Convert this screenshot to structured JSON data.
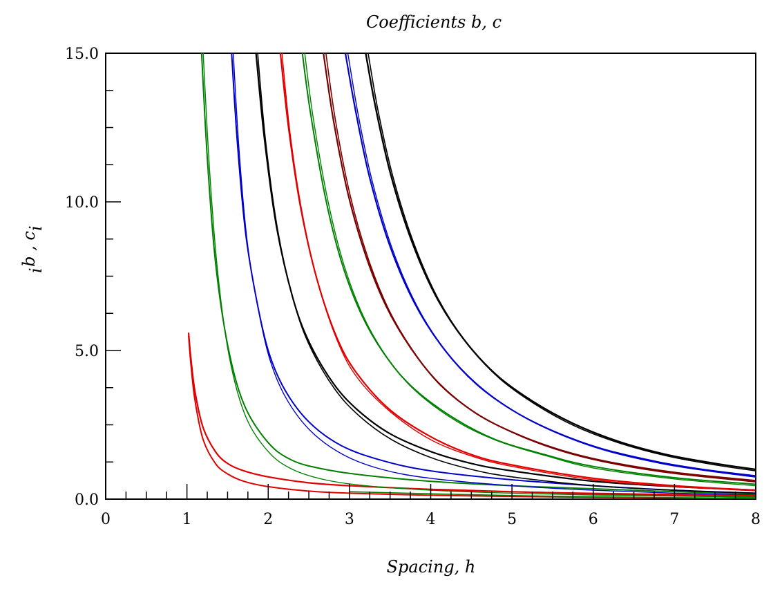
{
  "chart_data": {
    "type": "line",
    "title": "Coefficients b, c",
    "xlabel": "Spacing, h",
    "ylabel": "b , c",
    "ylabel_subscript": "i",
    "xlim": [
      0,
      8
    ],
    "ylim": [
      0,
      15
    ],
    "x_ticks": [
      "0",
      "1",
      "2",
      "3",
      "4",
      "5",
      "6",
      "7",
      "8"
    ],
    "y_ticks": [
      "0.0",
      "5.0",
      "10.0",
      "15.0"
    ],
    "grid": false,
    "legend": "none",
    "series": [
      {
        "color": "#e00000",
        "width": 2.2,
        "x": [
          1.02,
          1.05,
          1.1,
          1.2,
          1.35,
          1.5,
          1.7,
          2.0,
          2.5,
          3.0,
          4.0,
          5.0,
          6.0,
          7.0,
          8.0
        ],
        "y": [
          5.6,
          4.7,
          3.6,
          2.4,
          1.6,
          1.2,
          0.95,
          0.75,
          0.55,
          0.45,
          0.33,
          0.25,
          0.18,
          0.12,
          0.08
        ]
      },
      {
        "color": "#e00000",
        "width": 2.0,
        "x": [
          1.02,
          1.05,
          1.1,
          1.2,
          1.35,
          1.5,
          1.7,
          2.0,
          2.5,
          3.0,
          4.0,
          5.0,
          6.0,
          7.0,
          8.0
        ],
        "y": [
          5.5,
          4.5,
          3.3,
          2.0,
          1.2,
          0.85,
          0.6,
          0.42,
          0.27,
          0.2,
          0.13,
          0.09,
          0.06,
          0.04,
          0.03
        ]
      },
      {
        "color": "#008000",
        "width": 2.0,
        "x": [
          1.18,
          1.25,
          1.35,
          1.5,
          1.7,
          2.0,
          2.3,
          2.7,
          3.2,
          4.0,
          5.0,
          6.0,
          7.0,
          8.0
        ],
        "y": [
          15.0,
          11.5,
          8.0,
          5.2,
          3.2,
          1.9,
          1.3,
          1.0,
          0.8,
          0.6,
          0.45,
          0.35,
          0.25,
          0.18
        ]
      },
      {
        "color": "#008000",
        "width": 1.4,
        "x": [
          1.2,
          1.28,
          1.38,
          1.52,
          1.72,
          2.0,
          2.3,
          2.7,
          3.2,
          4.0,
          5.0,
          6.0,
          7.0,
          8.0
        ],
        "y": [
          15.0,
          11.0,
          7.6,
          4.8,
          2.8,
          1.6,
          1.0,
          0.65,
          0.45,
          0.3,
          0.2,
          0.14,
          0.1,
          0.07
        ]
      },
      {
        "color": "#0000c8",
        "width": 2.0,
        "x": [
          1.55,
          1.62,
          1.72,
          1.85,
          2.0,
          2.2,
          2.5,
          2.9,
          3.4,
          4.0,
          5.0,
          6.0,
          7.0,
          8.0
        ],
        "y": [
          15.0,
          12.0,
          9.0,
          6.8,
          5.0,
          3.7,
          2.6,
          1.8,
          1.3,
          0.95,
          0.65,
          0.45,
          0.3,
          0.2
        ]
      },
      {
        "color": "#0000c8",
        "width": 1.4,
        "x": [
          1.57,
          1.64,
          1.74,
          1.87,
          2.02,
          2.22,
          2.52,
          2.92,
          3.4,
          4.0,
          5.0,
          6.0,
          7.0,
          8.0
        ],
        "y": [
          15.0,
          11.8,
          8.7,
          6.5,
          4.7,
          3.4,
          2.3,
          1.5,
          1.0,
          0.7,
          0.45,
          0.3,
          0.2,
          0.14
        ]
      },
      {
        "color": "#000000",
        "width": 2.2,
        "x": [
          1.85,
          1.95,
          2.1,
          2.3,
          2.5,
          2.8,
          3.1,
          3.5,
          4.0,
          4.5,
          5.0,
          6.0,
          7.0,
          8.0
        ],
        "y": [
          15.0,
          12.2,
          9.2,
          6.8,
          5.3,
          3.9,
          3.0,
          2.2,
          1.6,
          1.2,
          0.95,
          0.6,
          0.42,
          0.3
        ]
      },
      {
        "color": "#000000",
        "width": 1.6,
        "x": [
          1.87,
          1.97,
          2.12,
          2.32,
          2.52,
          2.82,
          3.12,
          3.52,
          4.0,
          4.5,
          5.0,
          6.0,
          7.0,
          8.0
        ],
        "y": [
          15.0,
          12.0,
          9.0,
          6.6,
          5.1,
          3.7,
          2.8,
          2.0,
          1.4,
          1.0,
          0.75,
          0.45,
          0.3,
          0.2
        ]
      },
      {
        "color": "#e00000",
        "width": 2.2,
        "x": [
          2.15,
          2.25,
          2.4,
          2.6,
          2.85,
          3.1,
          3.5,
          4.0,
          4.5,
          5.0,
          6.0,
          7.0,
          8.0
        ],
        "y": [
          15.0,
          12.5,
          9.8,
          7.4,
          5.4,
          4.2,
          3.0,
          2.1,
          1.5,
          1.15,
          0.7,
          0.45,
          0.3
        ]
      },
      {
        "color": "#e00000",
        "width": 1.4,
        "x": [
          2.17,
          2.27,
          2.42,
          2.62,
          2.87,
          3.12,
          3.52,
          4.0,
          4.5,
          5.0,
          6.0,
          7.0,
          8.0
        ],
        "y": [
          15.0,
          12.3,
          9.6,
          7.2,
          5.2,
          4.0,
          2.9,
          2.0,
          1.45,
          1.1,
          0.65,
          0.42,
          0.28
        ]
      },
      {
        "color": "#008000",
        "width": 2.0,
        "x": [
          2.42,
          2.52,
          2.7,
          2.9,
          3.15,
          3.45,
          3.8,
          4.3,
          4.8,
          5.4,
          6.0,
          7.0,
          8.0
        ],
        "y": [
          15.0,
          13.0,
          10.2,
          8.0,
          6.2,
          4.8,
          3.7,
          2.7,
          2.0,
          1.5,
          1.1,
          0.72,
          0.5
        ]
      },
      {
        "color": "#008000",
        "width": 1.4,
        "x": [
          2.45,
          2.55,
          2.73,
          2.93,
          3.18,
          3.48,
          3.83,
          4.33,
          4.83,
          5.43,
          6.0,
          7.0,
          8.0
        ],
        "y": [
          15.0,
          12.9,
          10.1,
          7.9,
          6.1,
          4.7,
          3.6,
          2.6,
          1.95,
          1.45,
          1.05,
          0.68,
          0.45
        ]
      },
      {
        "color": "#7a0000",
        "width": 2.2,
        "x": [
          2.68,
          2.8,
          2.98,
          3.2,
          3.45,
          3.75,
          4.1,
          4.55,
          5.05,
          5.6,
          6.2,
          7.0,
          8.0
        ],
        "y": [
          15.0,
          12.8,
          10.3,
          8.2,
          6.5,
          5.1,
          3.9,
          2.9,
          2.2,
          1.65,
          1.25,
          0.9,
          0.62
        ]
      },
      {
        "color": "#7a0000",
        "width": 1.6,
        "x": [
          2.71,
          2.83,
          3.01,
          3.23,
          3.48,
          3.78,
          4.13,
          4.58,
          5.08,
          5.63,
          6.23,
          7.0,
          8.0
        ],
        "y": [
          15.0,
          12.7,
          10.2,
          8.1,
          6.4,
          5.0,
          3.8,
          2.85,
          2.15,
          1.6,
          1.2,
          0.86,
          0.58
        ]
      },
      {
        "color": "#0000c8",
        "width": 2.2,
        "x": [
          2.95,
          3.08,
          3.25,
          3.5,
          3.8,
          4.15,
          4.55,
          5.0,
          5.5,
          6.1,
          6.8,
          7.4,
          8.0
        ],
        "y": [
          15.0,
          13.0,
          10.8,
          8.5,
          6.6,
          5.1,
          3.9,
          3.0,
          2.3,
          1.7,
          1.25,
          0.98,
          0.78
        ]
      },
      {
        "color": "#0000c8",
        "width": 1.4,
        "x": [
          2.98,
          3.11,
          3.28,
          3.53,
          3.83,
          4.18,
          4.58,
          5.03,
          5.53,
          6.13,
          6.83,
          7.43,
          8.0
        ],
        "y": [
          15.0,
          12.9,
          10.7,
          8.4,
          6.5,
          5.0,
          3.85,
          2.95,
          2.25,
          1.65,
          1.2,
          0.94,
          0.74
        ]
      },
      {
        "color": "#000000",
        "width": 2.4,
        "x": [
          3.2,
          3.32,
          3.5,
          3.75,
          4.05,
          4.4,
          4.8,
          5.25,
          5.75,
          6.3,
          6.9,
          7.5,
          8.0
        ],
        "y": [
          15.0,
          13.2,
          11.0,
          8.8,
          6.9,
          5.4,
          4.2,
          3.3,
          2.55,
          1.95,
          1.5,
          1.2,
          1.0
        ]
      },
      {
        "color": "#000000",
        "width": 1.6,
        "x": [
          3.23,
          3.35,
          3.53,
          3.78,
          4.08,
          4.43,
          4.83,
          5.28,
          5.78,
          6.33,
          6.93,
          7.53,
          8.0
        ],
        "y": [
          15.0,
          13.1,
          10.9,
          8.7,
          6.8,
          5.3,
          4.1,
          3.2,
          2.45,
          1.88,
          1.44,
          1.14,
          0.95
        ]
      },
      {
        "color": "#e00000",
        "width": 1.6,
        "x": [
          4.0,
          5.0,
          6.0,
          7.0,
          8.0
        ],
        "y": [
          0.3,
          0.25,
          0.2,
          0.16,
          0.12
        ]
      },
      {
        "color": "#008000",
        "width": 1.6,
        "x": [
          3.0,
          4.0,
          5.0,
          6.0,
          7.0,
          8.0
        ],
        "y": [
          0.25,
          0.18,
          0.12,
          0.08,
          0.05,
          0.03
        ]
      }
    ]
  }
}
